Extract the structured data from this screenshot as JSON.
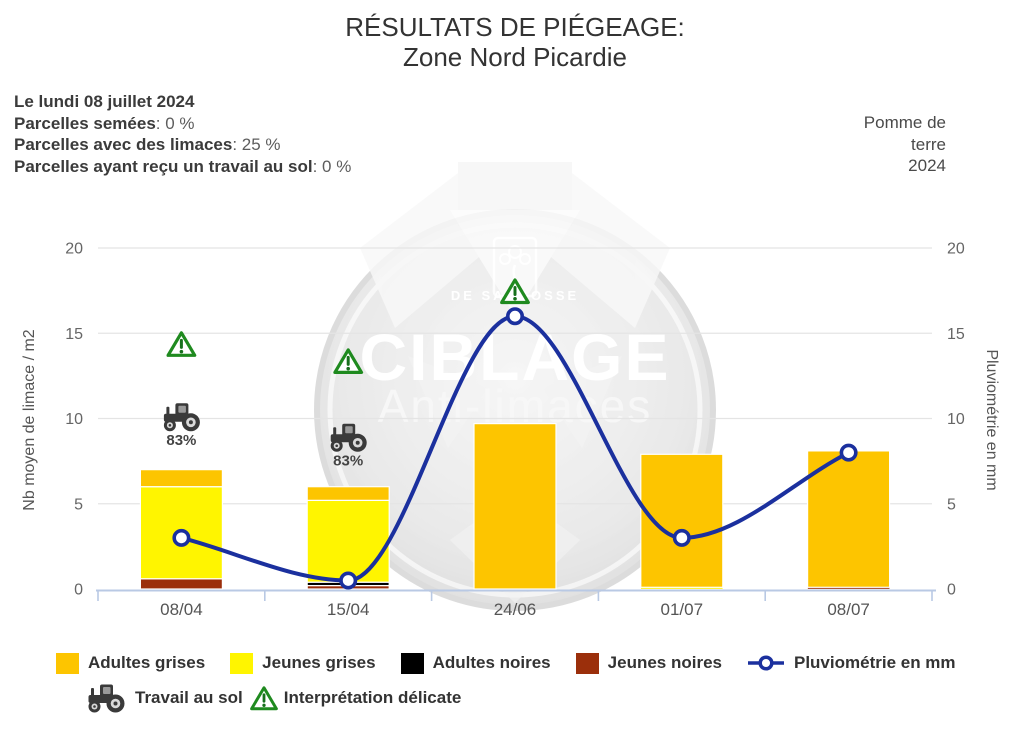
{
  "header": {
    "title_line1": "RÉSULTATS DE PIÉGEAGE:",
    "title_line2": "Zone Nord Picardie",
    "date_line": "Le lundi 08 juillet 2024",
    "info_lines": [
      {
        "label": "Parcelles semées",
        "value": ": 0 %"
      },
      {
        "label": "Parcelles avec des limaces",
        "value": ": 25 %"
      },
      {
        "label": "Parcelles ayant reçu un travail au sol",
        "value": ": 0 %"
      }
    ],
    "crop_lines": [
      "Pomme de",
      "terre",
      "2024"
    ]
  },
  "chart_data": {
    "type": "bar+line",
    "categories": [
      "08/04",
      "15/04",
      "24/06",
      "01/07",
      "08/07"
    ],
    "bar_series": [
      {
        "name": "Jeunes noires",
        "color": "#9B2F0B",
        "values": [
          0.6,
          0.2,
          0,
          0,
          0.1
        ]
      },
      {
        "name": "Adultes noires",
        "color": "#000000",
        "values": [
          0,
          0.2,
          0,
          0,
          0
        ]
      },
      {
        "name": "Jeunes grises",
        "color": "#FFF500",
        "values": [
          5.4,
          4.8,
          0,
          0.1,
          0
        ]
      },
      {
        "name": "Adultes grises",
        "color": "#FDC500",
        "values": [
          1.0,
          0.8,
          9.7,
          7.8,
          8.0
        ]
      }
    ],
    "line_series": {
      "name": "Pluviométrie en mm",
      "color": "#1B309E",
      "values": [
        3,
        0.5,
        16,
        3,
        8
      ]
    },
    "ylim": [
      0,
      20
    ],
    "yticks": [
      0,
      5,
      10,
      15,
      20
    ],
    "ylabel_left": "Nb moyen de limace / m2",
    "ylabel_right": "Pluviométrie en mm",
    "grid": true,
    "legend_position": "bottom",
    "annotations": {
      "tractor": [
        {
          "category_index": 0,
          "y_value": 10.1,
          "label": "83%"
        },
        {
          "category_index": 1,
          "y_value": 8.9,
          "label": "83%"
        }
      ],
      "warning_triangles": [
        {
          "category_index": 0,
          "y_value": 14.35
        },
        {
          "category_index": 1,
          "y_value": 13.35
        },
        {
          "category_index": 2,
          "y_value": 17.45
        }
      ]
    }
  },
  "legend": {
    "row1": [
      {
        "type": "swatch",
        "label": "Adultes grises",
        "color": "#FDC500"
      },
      {
        "type": "swatch",
        "label": "Jeunes grises",
        "color": "#FFF500"
      },
      {
        "type": "swatch",
        "label": "Adultes noires",
        "color": "#000000"
      },
      {
        "type": "swatch",
        "label": "Jeunes noires",
        "color": "#9B2F0B"
      },
      {
        "type": "line-marker",
        "label": "Pluviométrie en mm",
        "color": "#1B309E"
      }
    ],
    "row2": [
      {
        "type": "tractor-icon",
        "label": "Travail au sol"
      },
      {
        "type": "warning-icon",
        "label": "Interprétation délicate"
      }
    ]
  },
  "watermark": {
    "brand": "DE SANGOSSE",
    "title": "CIBLAGE",
    "subtitle": "Anti-limaces"
  },
  "colors": {
    "axis_line": "#B9C9E4",
    "gridline": "#E4E4E4",
    "tick_text": "#666666",
    "warning_green": "#1F8A1F",
    "tractor_gray": "#3A3A3A"
  }
}
